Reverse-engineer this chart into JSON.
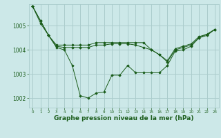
{
  "background_color": "#cce8e8",
  "grid_color": "#aacccc",
  "line_color": "#1a5c1a",
  "marker_color": "#1a5c1a",
  "xlabel": "Graphe pression niveau de la mer (hPa)",
  "xlabel_fontsize": 6.5,
  "ylabel_ticks": [
    1002,
    1003,
    1004,
    1005
  ],
  "xlim": [
    -0.5,
    23.5
  ],
  "ylim": [
    1001.6,
    1005.9
  ],
  "x": [
    0,
    1,
    2,
    3,
    4,
    5,
    6,
    7,
    8,
    9,
    10,
    11,
    12,
    13,
    14,
    15,
    16,
    17,
    18,
    19,
    20,
    21,
    22,
    23
  ],
  "series": [
    [
      1005.8,
      1005.2,
      1004.6,
      1004.2,
      1004.2,
      1004.2,
      1004.2,
      1004.2,
      1004.3,
      1004.3,
      1004.3,
      1004.3,
      1004.3,
      1004.3,
      1004.3,
      1004.0,
      1003.8,
      1003.5,
      1004.0,
      1004.1,
      1004.2,
      1004.5,
      1004.6,
      1004.85
    ],
    [
      1005.8,
      1005.2,
      1004.6,
      1004.15,
      1004.1,
      1004.1,
      1004.1,
      1004.1,
      1004.2,
      1004.2,
      1004.25,
      1004.25,
      1004.25,
      1004.2,
      1004.1,
      1004.0,
      1003.8,
      1003.55,
      1004.05,
      1004.15,
      1004.25,
      1004.55,
      1004.65,
      1004.85
    ],
    [
      1005.8,
      1005.1,
      1004.6,
      1004.1,
      1004.0,
      1003.35,
      1002.1,
      1002.0,
      1002.2,
      1002.25,
      1002.95,
      1002.95,
      1003.35,
      1003.05,
      1003.05,
      1003.05,
      1003.05,
      1003.35,
      1003.95,
      1004.0,
      1004.15,
      1004.5,
      1004.65,
      1004.85
    ]
  ]
}
